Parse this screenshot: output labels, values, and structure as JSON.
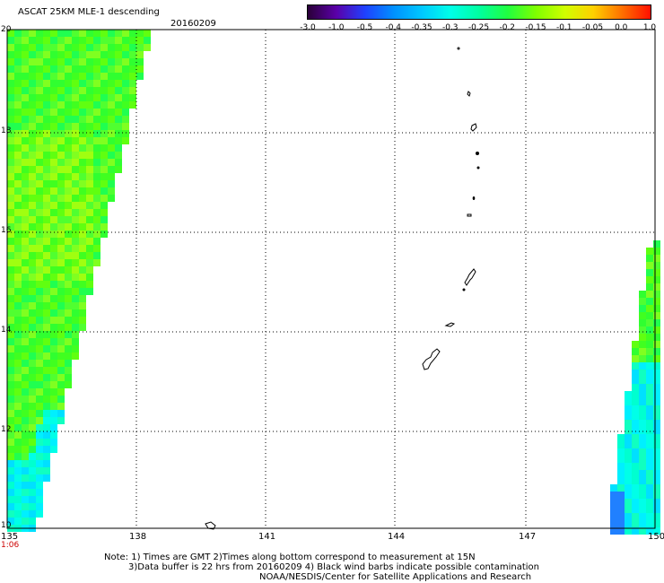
{
  "header": {
    "title": "ASCAT 25KM MLE-1 descending",
    "date": "20160209"
  },
  "colorbar": {
    "ticks": [
      "-3.0",
      "-1.0",
      "-0.5",
      "-0.4",
      "-0.35",
      "-0.3",
      "-0.25",
      "-0.2",
      "-0.15",
      "-0.1",
      "-0.05",
      "0.0",
      "1.0"
    ],
    "colors": [
      "#2a0038",
      "#5a00a8",
      "#2040ff",
      "#0090ff",
      "#00c8ff",
      "#00ffe8",
      "#00ffa0",
      "#20ff40",
      "#80ff00",
      "#d0ff00",
      "#ffd000",
      "#ff7000",
      "#ff1000"
    ]
  },
  "map": {
    "lon_range": [
      135,
      150
    ],
    "lat_range": [
      10,
      20
    ],
    "y_labels": [
      "20",
      "18",
      "16",
      "14",
      "12",
      "10"
    ],
    "x_labels": [
      "135",
      "138",
      "141",
      "144",
      "147",
      "150"
    ],
    "time_label": "1:06"
  },
  "notes": {
    "line1": "Note: 1) Times are GMT 2)Times along bottom correspond to measurement at 15N",
    "line2": "3)Data buffer is 22 hrs from 20160209 4) Black wind barbs indicate possible contamination",
    "line3": "NOAA/NESDIS/Center for Satellite Applications and Research"
  }
}
